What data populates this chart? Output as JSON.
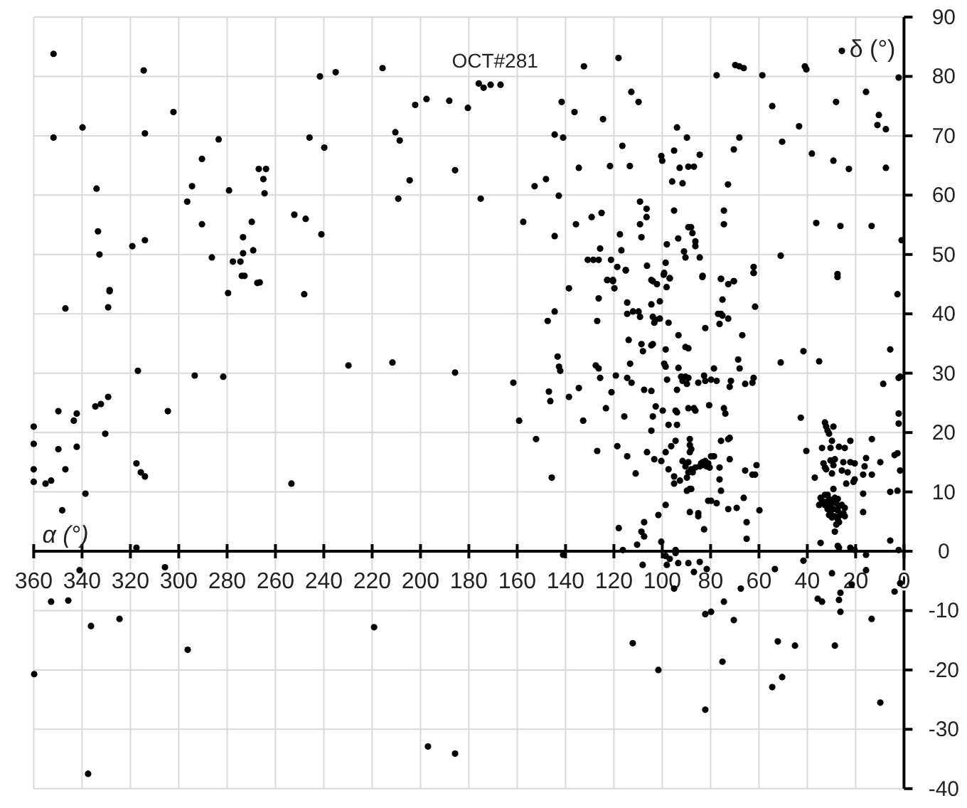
{
  "chart_data": {
    "type": "scatter",
    "xlabel": "α (°)",
    "ylabel": "δ (°)",
    "xlim": [
      360,
      0
    ],
    "ylim": [
      -40,
      90
    ],
    "xticks": [
      360,
      340,
      320,
      300,
      280,
      260,
      240,
      220,
      200,
      180,
      160,
      140,
      120,
      100,
      80,
      60,
      40,
      20,
      0
    ],
    "yticks": [
      -40,
      -30,
      -20,
      -10,
      0,
      10,
      20,
      30,
      40,
      50,
      60,
      70,
      80,
      90
    ],
    "grid": true,
    "marker": "circle",
    "annotations": [
      {
        "text": "OCT#281",
        "x": 173.9,
        "y": 78.1
      }
    ],
    "series": [
      {
        "color": "#000000",
        "x": [
          351.8,
          314.5,
          351.8,
          339.8,
          314,
          302.2,
          283.5,
          290.4,
          334,
          294.5,
          296.5,
          279.2,
          266.9,
          263.9,
          265,
          264.5,
          290.4,
          269.8,
          252.2,
          247.5,
          241,
          273.4,
          269.2,
          273.4,
          277.6,
          274.5,
          272.8,
          266.5,
          286.3,
          333.4,
          332.8,
          319.2,
          314,
          241.6,
          235.1,
          215.7,
          245.9,
          239.8,
          210.4,
          208.6,
          202.2,
          197.5,
          188.1,
          180.4,
          185.7,
          204.5,
          209.2,
          175.1,
          175.9,
          173.9,
          171,
          166.9,
          132.4,
          118.1,
          141.6,
          136.3,
          124.5,
          144.5,
          141,
          134.5,
          121.6,
          113.4,
          148.1,
          152.8,
          142.8,
          157.5,
          144.5,
          135.7,
          129.2,
          125.1,
          125.7,
          130.8,
          128.5,
          126.3,
          122.8,
          120.4,
          112.8,
          109.8,
          116.5,
          121.2,
          118.6,
          115.1,
          117.5,
          116.9,
          109.2,
          106.5,
          106.5,
          109.2,
          108.6,
          106.3,
          103.9,
          100.4,
          100,
          95.1,
          93.9,
          89.8,
          84.5,
          92.8,
          89.2,
          86.9,
          95.9,
          91.6,
          95.1,
          93.4,
          98.1,
          91,
          90.4,
          89.2,
          88.1,
          87.5,
          86.3,
          86.3,
          84.5,
          98.6,
          99.4,
          96.9,
          83.4,
          77.5,
          69.8,
          68.1,
          66.3,
          58.6,
          41,
          40.4,
          54.5,
          43.4,
          50.4,
          68.1,
          70.4,
          72.8,
          74.5,
          74.5,
          75.7,
          70.4,
          62.2,
          62.2,
          51,
          38.1,
          29.2,
          22.8,
          7.5,
          36.3,
          26.3,
          13.4,
          1,
          27.5,
          27.5,
          25.7,
          28.1,
          15.7,
          10.4,
          11,
          7.5,
          2.2,
          346.9,
          328.6,
          328.6,
          329.2,
          279.6,
          273.9,
          267.5,
          248.1,
          316.9,
          293.4,
          281.6,
          229.8,
          211.6,
          185.7,
          360,
          349.8,
          342.2,
          343.4,
          334.5,
          332.2,
          329.2,
          330.4,
          304.5,
          360,
          349.8,
          342.2,
          360,
          346.9,
          360,
          355.1,
          352.8,
          338.6,
          348.2,
          317.5,
          315.7,
          314,
          253.4,
          317.5,
          341,
          305.7,
          352.8,
          345.7,
          336.3,
          324.5,
          296.3,
          359.8,
          337.5,
          219.2,
          196.9,
          185.7,
          108.1,
          98.1,
          93.4,
          89.2,
          84.5,
          81.6,
          86.9,
          98.6,
          96.9,
          95.1,
          67.5,
          74.5,
          82.2,
          79.8,
          70.4,
          112.2,
          101.6,
          75.1,
          82.2,
          53.4,
          41.6,
          29.8,
          15.7,
          21.6,
          26.3,
          26.9,
          35.7,
          33.9,
          26.3,
          13.4,
          3.9,
          1.6,
          52.2,
          45.1,
          28.6,
          54.5,
          50.4,
          9.8,
          141,
          15.7,
          161.6,
          159.2,
          152.2,
          147.4,
          144.5,
          143.3,
          142.7,
          142.2,
          146.9,
          146.3,
          145.7,
          138.6,
          138.6,
          134.5,
          132.7,
          126.9,
          126.3,
          126.9,
          127.5,
          126.3,
          125.7,
          123.3,
          122.7,
          120.4,
          119.8,
          121,
          119.2,
          118.6,
          118,
          116.3,
          115.7,
          115.1,
          114.5,
          114.5,
          114.5,
          112.7,
          113.9,
          113.3,
          114.5,
          112.1,
          109.8,
          109.2,
          111,
          110.4,
          108.6,
          108,
          108.6,
          107.5,
          107.5,
          107.5,
          104.5,
          106.3,
          104.5,
          102.2,
          99.2,
          96.9,
          98.2,
          104.5,
          101,
          103.9,
          103.3,
          102.7,
          101,
          97.4,
          104.5,
          103.9,
          104.5,
          103.9,
          102.7,
          99.8,
          103.3,
          100.4,
          100.4,
          101.6,
          98.6,
          98.6,
          99.2,
          98.6,
          98,
          97.4,
          93.9,
          97.4,
          98.6,
          96.3,
          95.1,
          95.1,
          92.7,
          94.5,
          94.5,
          94.5,
          93.9,
          93.3,
          93.3,
          94.5,
          93.9,
          92.2,
          91.6,
          90.4,
          89.2,
          89.8,
          90.4,
          89.2,
          91.6,
          90.4,
          89.2,
          88,
          87.4,
          86.3,
          89.8,
          89.2,
          89.8,
          88.6,
          88,
          88.6,
          88.6,
          88,
          88.6,
          89.2,
          86.3,
          86.9,
          88.6,
          85.1,
          85.1,
          85.1,
          84.5,
          83.9,
          83.3,
          82.7,
          81.6,
          82.2,
          81,
          80.4,
          83.3,
          82.7,
          82.7,
          82.2,
          82.2,
          79.8,
          78.6,
          81,
          79.8,
          77.5,
          80.6,
          79.8,
          77.5,
          78.6,
          76.9,
          75.7,
          76.3,
          75.1,
          72.7,
          76.3,
          76.3,
          75.7,
          75.7,
          75.7,
          72.7,
          70.4,
          75.1,
          74.5,
          73.9,
          72.7,
          72.1,
          72.7,
          72.1,
          72.1,
          71.6,
          69.2,
          68.6,
          68,
          66.9,
          66.3,
          65.7,
          62.7,
          62.2,
          65.7,
          65.1,
          65.1,
          62.7,
          61.6,
          61,
          62.2,
          61.6,
          59.8,
          51,
          42.7,
          41.6,
          40.4,
          36.9,
          35.1,
          34.5,
          33.9,
          32.7,
          32.2,
          31.6,
          31,
          29.2,
          29.8,
          30.4,
          33.3,
          32.7,
          32.2,
          30.4,
          28.6,
          29.8,
          29.2,
          26.9,
          24.5,
          22.2,
          25.1,
          22.2,
          20.4,
          25.7,
          23.3,
          23.9,
          20.9,
          20.4,
          16.9,
          16.3,
          13.3,
          13.3,
          9.8,
          16.9,
          15.7,
          34.5,
          35.1,
          32.7,
          31.6,
          32.2,
          31,
          30.4,
          29.8,
          29.2,
          28.6,
          28,
          27.4,
          26.9,
          29.2,
          31.6,
          31,
          30.4,
          29.8,
          28.6,
          27.4,
          26.3,
          25.1,
          24.5,
          28,
          26.9,
          28.6,
          27.4,
          25.7,
          24.5,
          32.7,
          33.9,
          27.4,
          26.9,
          22.2,
          20.4,
          16.9,
          5.7,
          5.7,
          8.6,
          5.7,
          2.7,
          3.9,
          2.7,
          2.2,
          2.2,
          1.6,
          2.2,
          1.6,
          2.7,
          2.2
        ],
        "values": [
          83.8,
          81,
          69.7,
          71.4,
          70.4,
          74,
          69.4,
          66.1,
          61.1,
          61.5,
          58.9,
          60.8,
          64.4,
          64.4,
          62.7,
          60.3,
          55.1,
          55.5,
          56.7,
          56,
          53.4,
          52.9,
          50.7,
          50.2,
          48.8,
          48.8,
          46.4,
          45.3,
          49.5,
          53.9,
          50,
          51.4,
          52.4,
          80,
          80.7,
          81.4,
          69.7,
          68,
          70.6,
          69.2,
          75.2,
          76.2,
          75.9,
          74.7,
          64.2,
          62.5,
          59.4,
          59.4,
          78.8,
          78.1,
          78.6,
          78.6,
          81.7,
          83.1,
          75.7,
          74,
          72.8,
          70.2,
          69.7,
          64.6,
          64.9,
          64.9,
          62.7,
          61.5,
          59.9,
          55.5,
          53.1,
          55.1,
          56.3,
          57,
          51,
          49.1,
          49.1,
          49.1,
          45.7,
          45.7,
          77.4,
          75.7,
          68.3,
          49.1,
          47.9,
          47.3,
          53.4,
          50.7,
          58.9,
          57.7,
          56.3,
          55.1,
          52.9,
          48.1,
          45.5,
          66.6,
          65.8,
          67.5,
          71.4,
          69.7,
          66.8,
          64.6,
          64.8,
          64.8,
          62.3,
          62,
          57.4,
          52.7,
          51.7,
          50.5,
          49.5,
          54.6,
          54.6,
          53.6,
          52.2,
          51.4,
          49.5,
          48.6,
          46.6,
          46,
          46.2,
          80.2,
          81.9,
          81.7,
          81.4,
          80.2,
          81.7,
          81.2,
          75,
          71.6,
          69,
          69.7,
          67.7,
          61.8,
          57.4,
          55.1,
          45.9,
          45.5,
          47.9,
          46.9,
          49.8,
          67,
          65.8,
          64.4,
          64.6,
          55.3,
          54.8,
          54.8,
          52.4,
          46.7,
          46.2,
          84.3,
          75.7,
          77.4,
          73.5,
          71.8,
          71.1,
          79.8,
          40.9,
          44,
          43.8,
          41.1,
          43.5,
          46.4,
          45.2,
          43.3,
          30.4,
          29.6,
          29.4,
          31.3,
          31.8,
          30.1,
          21,
          23.6,
          23.2,
          22,
          24.4,
          24.8,
          26,
          19.8,
          23.6,
          18.1,
          17.2,
          17.6,
          13.8,
          13.8,
          11.7,
          11.4,
          11.9,
          9.7,
          6.9,
          14.8,
          13.3,
          12.6,
          11.4,
          0.6,
          -3.2,
          -2.7,
          -8.5,
          -8.3,
          -12.6,
          -11.4,
          -16.6,
          -20.7,
          -37.5,
          -12.8,
          -32.9,
          -34.1,
          -2.3,
          -2.3,
          -2,
          -2,
          -1.8,
          -3,
          -3.5,
          -0.8,
          -1.3,
          -6.3,
          -6.3,
          -8.5,
          -10.6,
          -10.2,
          -11.6,
          -15.5,
          -20,
          -18.6,
          -26.7,
          -3,
          -1.6,
          -3.7,
          -3.2,
          -5.6,
          -7,
          -8.2,
          -8,
          -8.5,
          -10.2,
          -11.4,
          -6.8,
          -5.4,
          -15.2,
          -15.9,
          -15.9,
          -22.9,
          -21.2,
          -25.5,
          -0.6,
          -0.6,
          28.4,
          22,
          18.9,
          38.8,
          40.4,
          32.8,
          31.1,
          30.4,
          26.9,
          25.3,
          12.4,
          44.3,
          26,
          27.5,
          22,
          16.9,
          42.6,
          38.8,
          31.3,
          30.8,
          29.2,
          24.1,
          45.7,
          45.5,
          44.3,
          26.8,
          29.6,
          17.7,
          3.9,
          0.2,
          22.7,
          47.4,
          41.9,
          40,
          29.2,
          28.4,
          35.6,
          31.6,
          16,
          40.4,
          40.4,
          39.5,
          13.1,
          1.1,
          34.9,
          33.7,
          3.3,
          2.5,
          4.9,
          27.2,
          27,
          16.7,
          45.7,
          45,
          46.9,
          46,
          44.5,
          41.6,
          42.1,
          39.5,
          38.5,
          39,
          39.2,
          38.5,
          34.7,
          34.9,
          20.3,
          22.7,
          24.4,
          23.7,
          15.5,
          15.2,
          1.6,
          6.1,
          7.8,
          34,
          31.6,
          31.1,
          28.9,
          21.3,
          21.3,
          13.8,
          16.7,
          17.7,
          12.6,
          11.4,
          11.9,
          -0.3,
          18.6,
          0.2,
          27.2,
          36.4,
          30.9,
          23.7,
          23.4,
          29.4,
          28.7,
          29.4,
          29.2,
          28.2,
          34.4,
          34.2,
          15.2,
          14.3,
          15,
          13.8,
          13.3,
          14.1,
          12.4,
          13.3,
          10.2,
          10.5,
          10.5,
          18.9,
          17.9,
          17.2,
          16.7,
          24.1,
          23.7,
          24.1,
          6.6,
          6.4,
          5.9,
          28.4,
          14.3,
          14.8,
          15,
          14.5,
          14.3,
          15.2,
          14.8,
          14.1,
          46.4,
          3.7,
          29.6,
          28.7,
          37.6,
          16,
          16,
          8.5,
          8.5,
          8.1,
          24.6,
          28.9,
          28.7,
          30.8,
          40,
          40,
          38.3,
          39.7,
          39.2,
          14.1,
          12.1,
          10.2,
          18.6,
          45.9,
          45,
          45.5,
          42.4,
          24.1,
          23.2,
          18.9,
          19.1,
          7.1,
          15.5,
          27.7,
          28.7,
          7.3,
          32.3,
          30.8,
          36.4,
          9,
          28.2,
          28.4,
          29.2,
          13.6,
          4.9,
          2.1,
          12.9,
          12.9,
          14.5,
          46.9,
          41.2,
          6.9,
          31.8,
          22.5,
          33.7,
          16.9,
          12.4,
          32,
          1.4,
          17.4,
          21.7,
          21,
          20.3,
          19.8,
          21,
          18.6,
          17.4,
          14.8,
          14.1,
          13.8,
          15.3,
          15.5,
          13.1,
          14.5,
          17.6,
          17.4,
          18.6,
          15,
          15,
          14.8,
          13.6,
          13.3,
          11.4,
          11.7,
          12.1,
          12.9,
          14.3,
          18.9,
          12.9,
          15,
          9.7,
          15.7,
          9,
          7.8,
          9.5,
          9.5,
          8.3,
          8.8,
          7.6,
          8.3,
          10.5,
          9,
          8.1,
          6.9,
          7.6,
          7.1,
          7.1,
          6.1,
          6.6,
          5.7,
          5.9,
          5.4,
          6.1,
          6.4,
          5.9,
          4.5,
          4.9,
          3.3,
          8.8,
          7.8,
          7.3,
          7.8,
          8.5,
          0.9,
          0.6,
          0.6,
          0.2,
          6.6,
          1.8,
          34,
          28.2,
          10,
          10.2,
          16.2,
          16.5,
          23.2,
          21.5,
          13.6,
          29.2,
          29.4,
          43.3,
          0.2
        ]
      }
    ]
  }
}
